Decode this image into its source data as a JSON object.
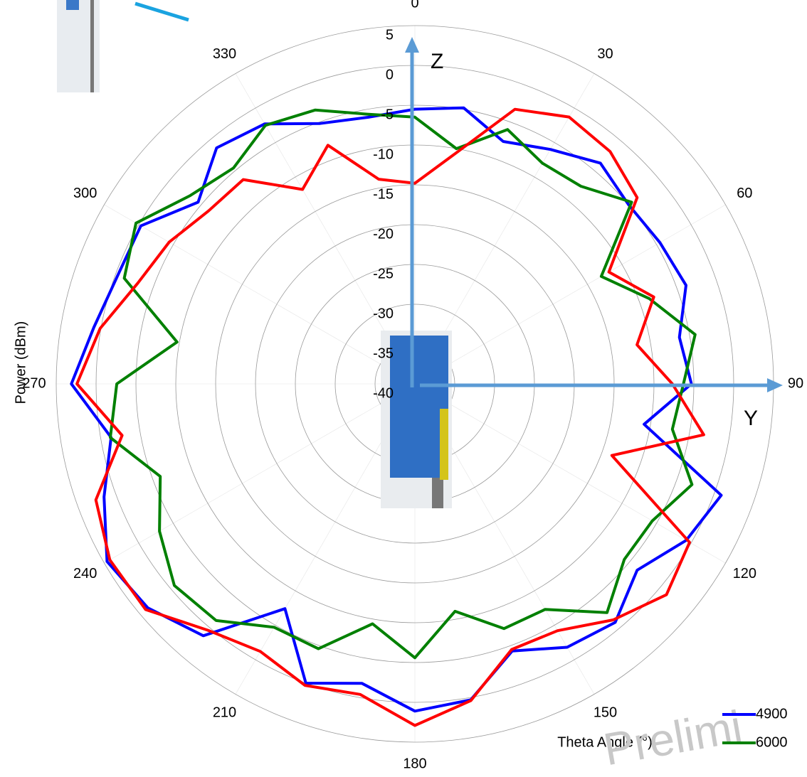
{
  "chart_data": {
    "type": "polar",
    "watermark": "Prelimi",
    "r_axis_label": "Power (dBm)",
    "theta_axis_label": "Theta  Angle (°)",
    "rlim": [
      -40,
      5
    ],
    "rticks": [
      5,
      0,
      -5,
      -10,
      -15,
      -20,
      -25,
      -30,
      -35,
      -40
    ],
    "thetaticks": [
      0,
      30,
      60,
      90,
      120,
      150,
      180,
      210,
      240,
      270,
      300,
      330
    ],
    "theta": [
      0,
      10,
      20,
      30,
      40,
      50,
      60,
      70,
      80,
      90,
      100,
      110,
      120,
      130,
      140,
      150,
      160,
      170,
      180,
      190,
      200,
      210,
      220,
      230,
      240,
      250,
      260,
      270,
      280,
      290,
      300,
      310,
      320,
      330,
      340,
      350
    ],
    "series": [
      {
        "name": "4900",
        "color": "#0000ff",
        "values": [
          -5.5,
          -4.8,
          -7.6,
          -6,
          -3.8,
          -5,
          -4.5,
          -3.8,
          -6.3,
          -5.3,
          -10.8,
          0.9,
          -0.7,
          -3.6,
          -0.9,
          -1.8,
          -4.3,
          0.3,
          1.1,
          -1.8,
          0,
          -7.4,
          1.3,
          3.75,
          4.6,
          1.5,
          -1.3,
          3.1,
          0.9,
          -0.3,
          -0.3,
          -4.5,
          -1.3,
          -2.3,
          -5.2,
          -6
        ]
      },
      {
        "name": "6000",
        "color": "#008000",
        "values": [
          -6.5,
          -10,
          -6,
          -8,
          -7.6,
          -4.5,
          -13,
          -8.7,
          -4.3,
          -6.3,
          -7.2,
          -3,
          -5.6,
          -5.7,
          -2.5,
          -7.3,
          -7.3,
          -11,
          -5.6,
          -9.4,
          -4.6,
          -4.7,
          -1.2,
          -0.6,
          -3,
          -6,
          -1.2,
          -2.6,
          -9.7,
          -1.2,
          0.4,
          -3.2,
          -4.6,
          -2.5,
          -3.4,
          -5.6
        ]
      },
      {
        "color": "#ff0000",
        "values": [
          -14.8,
          -10.6,
          -3.3,
          -1.3,
          -1.9,
          -3.6,
          -11.9,
          -8.1,
          -11.7,
          -7.7,
          -3.2,
          -13.7,
          -0.2,
          1.2,
          -1.3,
          -4.2,
          -4.5,
          0.4,
          2.9,
          -0.4,
          0.3,
          -1.2,
          0.4,
          4.1,
          4.2,
          2.6,
          -2.7,
          2.4,
          0.1,
          -3,
          -4.4,
          -6.2,
          -6.5,
          -11.8,
          -8.1,
          -13.9
        ]
      }
    ]
  }
}
